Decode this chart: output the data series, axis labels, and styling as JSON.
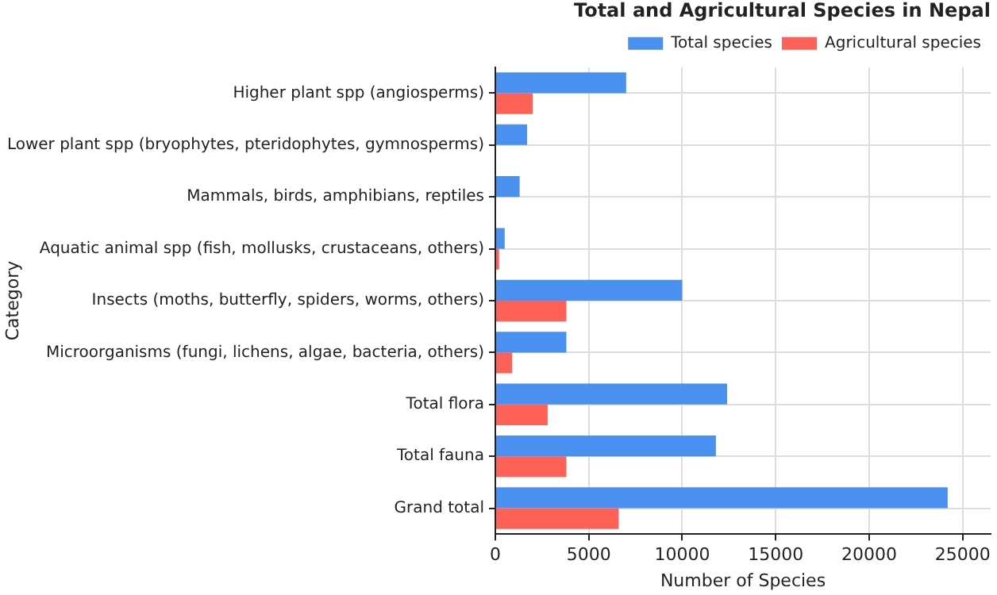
{
  "chart_data": {
    "type": "bar",
    "orientation": "horizontal",
    "title": "Total and Agricultural Species in Nepal",
    "xlabel": "Number of Species",
    "ylabel": "Category",
    "categories": [
      "Higher plant spp (angiosperms)",
      "Lower plant spp (bryophytes, pteridophytes, gymnosperms)",
      "Mammals, birds, amphibians, reptiles",
      "Aquatic animal spp (fish, mollusks, crustaceans, others)",
      "Insects (moths, butterfly, spiders, worms, others)",
      "Microorganisms (fungi, lichens, algae, bacteria, others)",
      "Total flora",
      "Total fauna",
      "Grand total"
    ],
    "series": [
      {
        "name": "Total species",
        "color": "#4a90f0",
        "values": [
          7000,
          1700,
          1300,
          500,
          10000,
          3800,
          12400,
          11800,
          24200
        ]
      },
      {
        "name": "Agricultural species",
        "color": "#ff6157",
        "values": [
          2000,
          0,
          0,
          200,
          3800,
          900,
          2800,
          3800,
          6600
        ]
      }
    ],
    "xlim": [
      0,
      26500
    ],
    "xticks": [
      0,
      5000,
      10000,
      15000,
      20000,
      25000
    ],
    "grid": true,
    "legend": "top right"
  }
}
